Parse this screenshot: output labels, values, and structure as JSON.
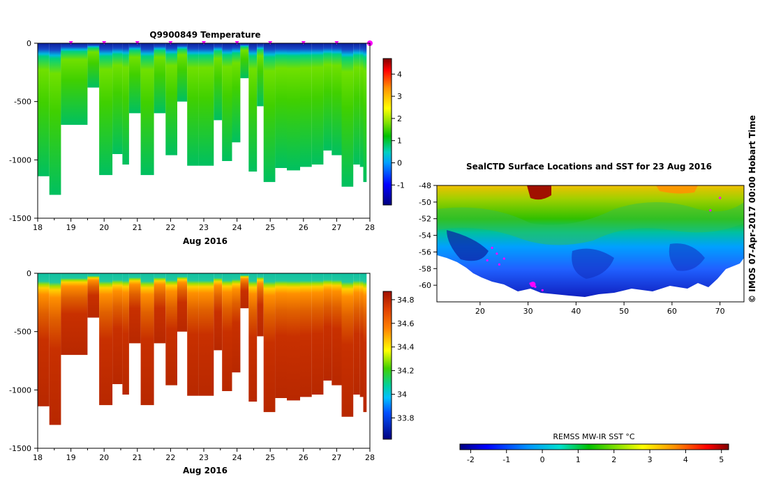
{
  "chart_data": [
    {
      "type": "heatmap",
      "title": "Q9900849  Temperature",
      "xlabel": "Aug 2016",
      "ylabel": "",
      "xticks": [
        "18",
        "19",
        "20",
        "21",
        "22",
        "23",
        "24",
        "25",
        "26",
        "27",
        "28"
      ],
      "xlim": [
        18,
        28
      ],
      "yticks": [
        "0",
        "-500",
        "-1000",
        "-1500"
      ],
      "ylim": [
        -1500,
        0
      ],
      "colorbar": {
        "ticks": [
          "-1",
          "0",
          "1",
          "2",
          "3",
          "4"
        ],
        "range": [
          -1.9,
          4.7
        ]
      },
      "profile_days": [
        18.0,
        18.35,
        18.7,
        19.05,
        19.5,
        19.85,
        20.25,
        20.55,
        20.75,
        21.1,
        21.5,
        21.85,
        22.2,
        22.5,
        22.85,
        23.3,
        23.55,
        23.85,
        24.1,
        24.35,
        24.6,
        24.8,
        25.15,
        25.5,
        25.9,
        26.25,
        26.6,
        26.85,
        27.15,
        27.5,
        27.7,
        27.8
      ],
      "profile_depths": [
        1140,
        1300,
        700,
        700,
        380,
        1130,
        950,
        1040,
        600,
        1130,
        600,
        960,
        500,
        1050,
        1050,
        660,
        1010,
        850,
        300,
        1100,
        540,
        1190,
        1070,
        1090,
        1060,
        1040,
        920,
        960,
        1230,
        1040,
        1060,
        1190
      ],
      "profile_markers": [
        19.0,
        20.0,
        21.0,
        22.0,
        23.0,
        24.0,
        25.0,
        26.0,
        27.0
      ],
      "latest_marker": 28.0,
      "layers": {
        "surface_temp": -1.4,
        "transition_depth": 150,
        "deep_temp": 1.5,
        "subsurface_max_temp": 2.2
      }
    },
    {
      "type": "heatmap",
      "title": "",
      "xlabel": "Aug 2016",
      "ylabel": "",
      "xticks": [
        "18",
        "19",
        "20",
        "21",
        "22",
        "23",
        "24",
        "25",
        "26",
        "27",
        "28"
      ],
      "xlim": [
        18,
        28
      ],
      "yticks": [
        "0",
        "-500",
        "-1000",
        "-1500"
      ],
      "ylim": [
        -1500,
        0
      ],
      "colorbar": {
        "ticks": [
          "33.8",
          "34",
          "34.2",
          "34.4",
          "34.6",
          "34.8"
        ],
        "range": [
          33.62,
          34.87
        ]
      },
      "layers": {
        "surface_salinity": 34.0,
        "halocline_depth": 150,
        "deep_salinity": 34.72
      }
    },
    {
      "type": "heatmap",
      "title": "SealCTD Surface Locations and SST for 23 Aug 2016",
      "xlabel": "",
      "ylabel": "",
      "xticks": [
        "20",
        "30",
        "40",
        "50",
        "60",
        "70"
      ],
      "xlim": [
        11,
        75
      ],
      "yticks": [
        "-48",
        "-50",
        "-52",
        "-54",
        "-56",
        "-58",
        "-60"
      ],
      "ylim": [
        -62,
        -48
      ],
      "colorbar_title": "REMSS MW-IR SST °C",
      "colorbar": {
        "ticks": [
          "-2",
          "-1",
          "0",
          "1",
          "2",
          "3",
          "4",
          "5"
        ],
        "range": [
          -2.3,
          5.2
        ]
      },
      "track_points": [
        {
          "lon": 22.5,
          "lat": -55.5
        },
        {
          "lon": 23.5,
          "lat": -56.2
        },
        {
          "lon": 21.5,
          "lat": -57.0
        },
        {
          "lon": 24.0,
          "lat": -57.5
        },
        {
          "lon": 25.0,
          "lat": -56.8
        },
        {
          "lon": 30.5,
          "lat": -59.8
        },
        {
          "lon": 31.5,
          "lat": -60.2
        },
        {
          "lon": 33.0,
          "lat": -60.6
        },
        {
          "lon": 68.0,
          "lat": -51.0
        },
        {
          "lon": 70.0,
          "lat": -49.5
        }
      ],
      "current_location": {
        "lon": 31.0,
        "lat": -59.9
      }
    }
  ],
  "credit": "© IMOS 07-Apr-2017 00:00 Hobart Time"
}
